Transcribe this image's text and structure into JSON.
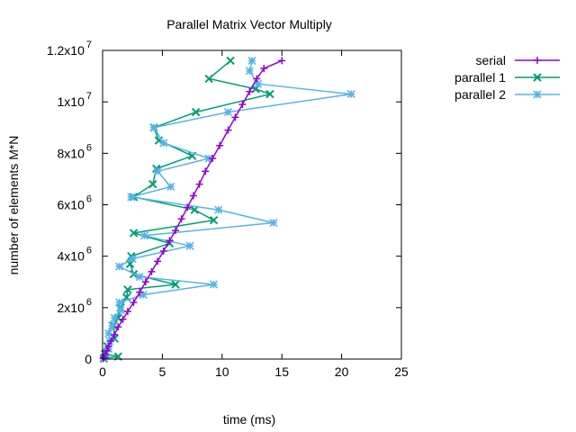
{
  "chart_data": {
    "type": "line",
    "title": "Parallel Matrix Vector Multiply",
    "xlabel": "time (ms)",
    "ylabel": "number of elements M*N",
    "xlim": [
      0,
      25
    ],
    "ylim": [
      0,
      12000000
    ],
    "xticks": [
      {
        "value": 0,
        "label": "0"
      },
      {
        "value": 5,
        "label": "5"
      },
      {
        "value": 10,
        "label": "10"
      },
      {
        "value": 15,
        "label": "15"
      },
      {
        "value": 20,
        "label": "20"
      },
      {
        "value": 25,
        "label": "25"
      }
    ],
    "yticks": [
      {
        "value": 0,
        "mant": "0",
        "exp": ""
      },
      {
        "value": 2000000,
        "mant": "2x10",
        "exp": "6"
      },
      {
        "value": 4000000,
        "mant": "4x10",
        "exp": "6"
      },
      {
        "value": 6000000,
        "mant": "6x10",
        "exp": "6"
      },
      {
        "value": 8000000,
        "mant": "8x10",
        "exp": "6"
      },
      {
        "value": 10000000,
        "mant": "1x10",
        "exp": "7"
      },
      {
        "value": 12000000,
        "mant": "1.2x10",
        "exp": "7"
      }
    ],
    "grid": false,
    "legend_position": "outside-top-right",
    "series": [
      {
        "name": "serial",
        "color": "#9400d3",
        "marker": "plus",
        "points": [
          [
            0.05,
            20000
          ],
          [
            0.1,
            80000
          ],
          [
            0.2,
            180000
          ],
          [
            0.35,
            320000
          ],
          [
            0.5,
            500000
          ],
          [
            0.7,
            700000
          ],
          [
            1.0,
            950000
          ],
          [
            1.3,
            1250000
          ],
          [
            1.7,
            1550000
          ],
          [
            2.1,
            1850000
          ],
          [
            2.6,
            2200000
          ],
          [
            3.1,
            2600000
          ],
          [
            3.6,
            3000000
          ],
          [
            4.1,
            3400000
          ],
          [
            4.6,
            3800000
          ],
          [
            5.1,
            4200000
          ],
          [
            5.6,
            4600000
          ],
          [
            6.1,
            5000000
          ],
          [
            6.6,
            5450000
          ],
          [
            7.1,
            5900000
          ],
          [
            7.6,
            6350000
          ],
          [
            8.1,
            6800000
          ],
          [
            8.6,
            7300000
          ],
          [
            9.2,
            7800000
          ],
          [
            9.8,
            8300000
          ],
          [
            10.5,
            8900000
          ],
          [
            11.1,
            9400000
          ],
          [
            11.7,
            9900000
          ],
          [
            12.3,
            10400000
          ],
          [
            12.9,
            10900000
          ],
          [
            13.5,
            11300000
          ],
          [
            15.0,
            11600000
          ]
        ]
      },
      {
        "name": "parallel 1",
        "color": "#009e73",
        "marker": "cross",
        "points": [
          [
            0.1,
            20000
          ],
          [
            1.3,
            100000
          ],
          [
            0.2,
            200000
          ],
          [
            0.4,
            500000
          ],
          [
            1.0,
            800000
          ],
          [
            0.9,
            1300000
          ],
          [
            1.3,
            1600000
          ],
          [
            1.5,
            2000000
          ],
          [
            2.0,
            2400000
          ],
          [
            2.1,
            2700000
          ],
          [
            6.1,
            2900000
          ],
          [
            2.6,
            3300000
          ],
          [
            2.3,
            3700000
          ],
          [
            2.4,
            4000000
          ],
          [
            5.6,
            4500000
          ],
          [
            2.6,
            4900000
          ],
          [
            9.3,
            5400000
          ],
          [
            7.7,
            5800000
          ],
          [
            2.6,
            6300000
          ],
          [
            4.2,
            6800000
          ],
          [
            4.5,
            7400000
          ],
          [
            7.5,
            7900000
          ],
          [
            4.7,
            8500000
          ],
          [
            4.3,
            9000000
          ],
          [
            7.8,
            9600000
          ],
          [
            14.0,
            10300000
          ],
          [
            12.8,
            10500000
          ],
          [
            8.9,
            10900000
          ],
          [
            10.7,
            11600000
          ]
        ]
      },
      {
        "name": "parallel 2",
        "color": "#56b4e9",
        "marker": "box",
        "points": [
          [
            0.1,
            50000
          ],
          [
            0.3,
            200000
          ],
          [
            0.5,
            400000
          ],
          [
            0.6,
            700000
          ],
          [
            0.5,
            1000000
          ],
          [
            0.8,
            1300000
          ],
          [
            1.0,
            1600000
          ],
          [
            1.5,
            1900000
          ],
          [
            1.4,
            2200000
          ],
          [
            3.4,
            2500000
          ],
          [
            9.3,
            2900000
          ],
          [
            3.1,
            3200000
          ],
          [
            1.4,
            3600000
          ],
          [
            2.5,
            3900000
          ],
          [
            7.3,
            4400000
          ],
          [
            3.5,
            4800000
          ],
          [
            14.3,
            5300000
          ],
          [
            9.7,
            5800000
          ],
          [
            2.4,
            6300000
          ],
          [
            5.7,
            6700000
          ],
          [
            4.6,
            7300000
          ],
          [
            8.9,
            7800000
          ],
          [
            5.1,
            8400000
          ],
          [
            4.3,
            9000000
          ],
          [
            10.5,
            9600000
          ],
          [
            20.8,
            10300000
          ],
          [
            13.0,
            10700000
          ],
          [
            12.3,
            11200000
          ],
          [
            12.5,
            11600000
          ]
        ]
      }
    ]
  }
}
